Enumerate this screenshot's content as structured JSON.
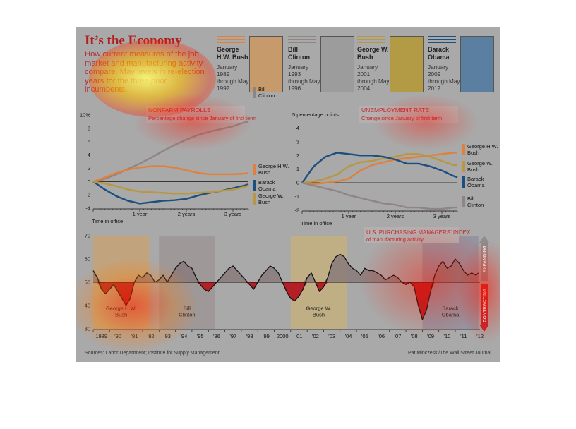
{
  "header": {
    "title": "It’s the Economy",
    "subtitle": "How current measures of the job market and manufacturing activity compare. May levels in re-election years for the three prior incumbents."
  },
  "presidents": [
    {
      "name": "George H.W. Bush",
      "period": "January 1989 through May 1992",
      "color": "#e0803a",
      "portrait_bg": "#c69a6a",
      "icon": "portrait-ghw-bush"
    },
    {
      "name": "Bill Clinton",
      "period": "January 1993 through May 1996",
      "color": "#8f8585",
      "portrait_bg": "#9c9c9c",
      "icon": "portrait-bill-clinton"
    },
    {
      "name": "George W. Bush",
      "period": "January 2001 through May 2004",
      "color": "#b9963f",
      "portrait_bg": "#b39a45",
      "icon": "portrait-gw-bush"
    },
    {
      "name": "Barack Obama",
      "period": "January 2009 through May 2012",
      "color": "#1d4f7e",
      "portrait_bg": "#5a7fa0",
      "icon": "portrait-barack-obama"
    }
  ],
  "footer": {
    "source": "Sources: Labor Department; Institute for Supply Management",
    "credit": "Pat Minczeski/The Wall Street Journal"
  },
  "colors": {
    "panel": "#a9a9a9",
    "ink": "#111111",
    "expanding_arrow": "#8e8e8e",
    "contracting_arrow": "#c0272d",
    "pmi_fill_above": "#8a7a7a",
    "pmi_fill_below": "#b31f24"
  },
  "heatmap": {
    "present": true,
    "palette": [
      "#ff0000",
      "#ffb400",
      "#ffff66"
    ]
  },
  "chart_data": [
    {
      "type": "line",
      "title": "NONFARM PAYROLLS",
      "subtitle": "Percentage change since January of first term",
      "ylabel": "",
      "xlabel": "Time in office",
      "ylim": [
        -4,
        10
      ],
      "yticks": [
        "10%",
        "8",
        "6",
        "4",
        "2",
        "0",
        "-2",
        "-4"
      ],
      "xlim": [
        0,
        40
      ],
      "xticks": [
        {
          "x": 12,
          "label": "1 year"
        },
        {
          "x": 24,
          "label": "2 years"
        },
        {
          "x": 36,
          "label": "3 years"
        }
      ],
      "series": [
        {
          "name": "Bill Clinton",
          "color": "#8f8585",
          "points": [
            [
              0,
              0
            ],
            [
              3,
              0.4
            ],
            [
              6,
              1.1
            ],
            [
              9,
              1.9
            ],
            [
              12,
              2.7
            ],
            [
              15,
              3.6
            ],
            [
              18,
              4.6
            ],
            [
              21,
              5.5
            ],
            [
              24,
              6.3
            ],
            [
              27,
              7.0
            ],
            [
              30,
              7.5
            ],
            [
              33,
              7.9
            ],
            [
              36,
              8.3
            ],
            [
              39,
              8.9
            ],
            [
              40,
              9.0
            ]
          ]
        },
        {
          "name": "George H.W. Bush",
          "color": "#e0803a",
          "points": [
            [
              0,
              0
            ],
            [
              3,
              0.6
            ],
            [
              6,
              1.3
            ],
            [
              9,
              1.8
            ],
            [
              12,
              2.1
            ],
            [
              15,
              2.3
            ],
            [
              18,
              2.3
            ],
            [
              21,
              2.1
            ],
            [
              24,
              1.7
            ],
            [
              27,
              1.3
            ],
            [
              30,
              1.1
            ],
            [
              33,
              1.1
            ],
            [
              36,
              1.1
            ],
            [
              39,
              1.2
            ],
            [
              40,
              1.3
            ]
          ]
        },
        {
          "name": "Barack Obama",
          "color": "#1d4f7e",
          "points": [
            [
              0,
              0
            ],
            [
              3,
              -1.2
            ],
            [
              6,
              -2.2
            ],
            [
              9,
              -2.9
            ],
            [
              12,
              -3.3
            ],
            [
              15,
              -3.1
            ],
            [
              18,
              -2.9
            ],
            [
              21,
              -2.8
            ],
            [
              24,
              -2.6
            ],
            [
              27,
              -2.1
            ],
            [
              30,
              -1.7
            ],
            [
              33,
              -1.4
            ],
            [
              36,
              -1.0
            ],
            [
              39,
              -0.6
            ],
            [
              40,
              -0.4
            ]
          ]
        },
        {
          "name": "George W. Bush",
          "color": "#b9963f",
          "points": [
            [
              0,
              0
            ],
            [
              3,
              -0.3
            ],
            [
              6,
              -0.7
            ],
            [
              9,
              -1.2
            ],
            [
              12,
              -1.5
            ],
            [
              15,
              -1.6
            ],
            [
              18,
              -1.7
            ],
            [
              21,
              -1.8
            ],
            [
              24,
              -1.8
            ],
            [
              27,
              -1.7
            ],
            [
              30,
              -1.6
            ],
            [
              33,
              -1.4
            ],
            [
              36,
              -1.2
            ],
            [
              39,
              -0.8
            ],
            [
              40,
              -0.6
            ]
          ]
        }
      ]
    },
    {
      "type": "line",
      "title": "UNEMPLOYMENT RATE",
      "subtitle": "Change since January of first term",
      "ylabel": "5 percentage points",
      "xlabel": "Time in office",
      "ylim": [
        -2,
        5
      ],
      "yticks": [
        "4",
        "3",
        "2",
        "1",
        "0",
        "-1",
        "-2"
      ],
      "xlim": [
        0,
        40
      ],
      "xticks": [
        {
          "x": 12,
          "label": "1 year"
        },
        {
          "x": 24,
          "label": "2 years"
        },
        {
          "x": 36,
          "label": "3 years"
        }
      ],
      "series": [
        {
          "name": "George H.W. Bush",
          "color": "#e0803a",
          "points": [
            [
              0,
              0
            ],
            [
              3,
              -0.1
            ],
            [
              6,
              0
            ],
            [
              9,
              0.1
            ],
            [
              12,
              0.3
            ],
            [
              15,
              0.9
            ],
            [
              18,
              1.3
            ],
            [
              21,
              1.5
            ],
            [
              24,
              1.7
            ],
            [
              27,
              1.8
            ],
            [
              30,
              1.9
            ],
            [
              33,
              2.0
            ],
            [
              36,
              2.1
            ],
            [
              39,
              2.2
            ],
            [
              40,
              2.2
            ]
          ]
        },
        {
          "name": "George W. Bush",
          "color": "#b9963f",
          "points": [
            [
              0,
              0
            ],
            [
              3,
              0.1
            ],
            [
              6,
              0.3
            ],
            [
              9,
              0.6
            ],
            [
              12,
              1.2
            ],
            [
              15,
              1.5
            ],
            [
              18,
              1.6
            ],
            [
              21,
              1.8
            ],
            [
              24,
              1.9
            ],
            [
              27,
              2.1
            ],
            [
              30,
              2.1
            ],
            [
              33,
              1.9
            ],
            [
              36,
              1.6
            ],
            [
              39,
              1.3
            ],
            [
              40,
              1.3
            ]
          ]
        },
        {
          "name": "Barack Obama",
          "color": "#1d4f7e",
          "points": [
            [
              0,
              0
            ],
            [
              3,
              1.2
            ],
            [
              6,
              1.9
            ],
            [
              9,
              2.2
            ],
            [
              12,
              2.1
            ],
            [
              15,
              2.0
            ],
            [
              18,
              2.0
            ],
            [
              21,
              1.9
            ],
            [
              24,
              1.7
            ],
            [
              27,
              1.4
            ],
            [
              30,
              1.4
            ],
            [
              33,
              1.2
            ],
            [
              36,
              0.9
            ],
            [
              39,
              0.5
            ],
            [
              40,
              0.4
            ]
          ]
        },
        {
          "name": "Bill Clinton",
          "color": "#8f8585",
          "points": [
            [
              0,
              0
            ],
            [
              3,
              -0.2
            ],
            [
              6,
              -0.4
            ],
            [
              9,
              -0.6
            ],
            [
              12,
              -0.9
            ],
            [
              15,
              -1.1
            ],
            [
              18,
              -1.3
            ],
            [
              21,
              -1.5
            ],
            [
              24,
              -1.6
            ],
            [
              27,
              -1.8
            ],
            [
              30,
              -1.8
            ],
            [
              33,
              -1.9
            ],
            [
              36,
              -1.9
            ],
            [
              39,
              -1.8
            ],
            [
              40,
              -1.8
            ]
          ]
        }
      ]
    },
    {
      "type": "area",
      "title": "U.S. PURCHASING MANAGERS’ INDEX",
      "subtitle": "of manufacturing activity",
      "xlabel": "",
      "ylabel": "",
      "ylim": [
        30,
        70
      ],
      "yticks": [
        "70",
        "60",
        "50",
        "40",
        "30"
      ],
      "baseline": 50,
      "xlim": [
        1989,
        2012.5
      ],
      "xtick_labels": [
        "1989",
        "’90",
        "’91",
        "’92",
        "’93",
        "’94",
        "’95",
        "’96",
        "’97",
        "’98",
        "’99",
        "2000",
        "’01",
        "’02",
        "’03",
        "’04",
        "’05",
        "’06",
        "’07",
        "’08",
        "’09",
        "’10",
        "’11",
        "’12"
      ],
      "right_labels": {
        "expanding": "EXPANDING",
        "contracting": "CONTRACTING"
      },
      "shaded_terms": [
        {
          "label": "George H.W. Bush",
          "start": 1989.0,
          "end": 1992.4,
          "color": "#c9a36f"
        },
        {
          "label": "Bill Clinton",
          "start": 1993.0,
          "end": 1996.4,
          "color": "#9b9393"
        },
        {
          "label": "George W. Bush",
          "start": 2001.0,
          "end": 2004.4,
          "color": "#c8b27a"
        },
        {
          "label": "Barack Obama",
          "start": 2009.0,
          "end": 2012.4,
          "color": "#8e8fa0"
        }
      ],
      "x": [
        1989.0,
        1989.25,
        1989.5,
        1989.75,
        1990.0,
        1990.25,
        1990.5,
        1990.75,
        1991.0,
        1991.25,
        1991.5,
        1991.75,
        1992.0,
        1992.25,
        1992.5,
        1992.75,
        1993.0,
        1993.25,
        1993.5,
        1993.75,
        1994.0,
        1994.25,
        1994.5,
        1994.75,
        1995.0,
        1995.25,
        1995.5,
        1995.75,
        1996.0,
        1996.25,
        1996.5,
        1996.75,
        1997.0,
        1997.25,
        1997.5,
        1997.75,
        1998.0,
        1998.25,
        1998.5,
        1998.75,
        1999.0,
        1999.25,
        1999.5,
        1999.75,
        2000.0,
        2000.25,
        2000.5,
        2000.75,
        2001.0,
        2001.25,
        2001.5,
        2001.75,
        2002.0,
        2002.25,
        2002.5,
        2002.75,
        2003.0,
        2003.25,
        2003.5,
        2003.75,
        2004.0,
        2004.25,
        2004.5,
        2004.75,
        2005.0,
        2005.25,
        2005.5,
        2005.75,
        2006.0,
        2006.25,
        2006.5,
        2006.75,
        2007.0,
        2007.25,
        2007.5,
        2007.75,
        2008.0,
        2008.25,
        2008.5,
        2008.75,
        2009.0,
        2009.25,
        2009.5,
        2009.75,
        2010.0,
        2010.25,
        2010.5,
        2010.75,
        2011.0,
        2011.25,
        2011.5,
        2011.75,
        2012.0,
        2012.25,
        2012.4
      ],
      "values": [
        55,
        52,
        47,
        45,
        47,
        49,
        46,
        43,
        40,
        43,
        50,
        53,
        52,
        54,
        53,
        50,
        51,
        53,
        50,
        53,
        56,
        58,
        59,
        57,
        56,
        52,
        49,
        47,
        46,
        48,
        50,
        52,
        54,
        56,
        57,
        55,
        53,
        51,
        49,
        47,
        50,
        53,
        55,
        57,
        56,
        54,
        50,
        46,
        43,
        42,
        44,
        47,
        52,
        54,
        50,
        46,
        48,
        52,
        58,
        61,
        62,
        61,
        58,
        56,
        55,
        53,
        56,
        55,
        55,
        54,
        53,
        51,
        52,
        53,
        52,
        50,
        49,
        50,
        48,
        40,
        34,
        38,
        46,
        53,
        57,
        59,
        56,
        57,
        60,
        58,
        55,
        53,
        54,
        53,
        54
      ]
    }
  ]
}
